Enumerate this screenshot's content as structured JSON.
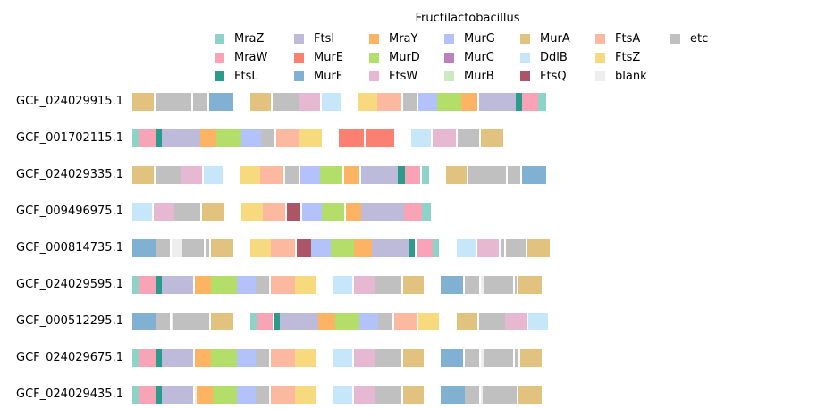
{
  "chart_data": {
    "type": "bar",
    "subtype": "gene-neighborhood-track",
    "legend_title": "Fructilactobacillus",
    "legend": [
      {
        "name": "MraZ",
        "color": "#8dd3c7"
      },
      {
        "name": "MraW",
        "color": "#f9a3b6"
      },
      {
        "name": "FtsL",
        "color": "#2b9c8c"
      },
      {
        "name": "FtsI",
        "color": "#bebada"
      },
      {
        "name": "MurE",
        "color": "#fb8072"
      },
      {
        "name": "MurF",
        "color": "#80b1d3"
      },
      {
        "name": "MraY",
        "color": "#fdb462"
      },
      {
        "name": "MurD",
        "color": "#b3de69"
      },
      {
        "name": "FtsW",
        "color": "#e6b8d2"
      },
      {
        "name": "MurG",
        "color": "#b4c2fc"
      },
      {
        "name": "MurC",
        "color": "#bc80bd"
      },
      {
        "name": "MurB",
        "color": "#ccebc5"
      },
      {
        "name": "MurA",
        "color": "#e1c27f"
      },
      {
        "name": "DdlB",
        "color": "#c6e6f9"
      },
      {
        "name": "FtsQ",
        "color": "#ab5566"
      },
      {
        "name": "FtsA",
        "color": "#fdb9a0"
      },
      {
        "name": "FtsZ",
        "color": "#f8da7e"
      },
      {
        "name": "blank",
        "color": "#eeeeee"
      },
      {
        "name": "etc",
        "color": "#c0c0c0"
      }
    ],
    "rows": [
      {
        "label": "GCF_024029915.1",
        "genes": [
          {
            "s": 148,
            "e": 172,
            "g": "MurA"
          },
          {
            "s": 174,
            "e": 214,
            "g": "etc"
          },
          {
            "s": 216,
            "e": 232,
            "g": "etc"
          },
          {
            "s": 234,
            "e": 261,
            "g": "MurF"
          },
          {
            "s": 280,
            "e": 303,
            "g": "MurA"
          },
          {
            "s": 305,
            "e": 334,
            "g": "etc"
          },
          {
            "s": 334,
            "e": 358,
            "g": "FtsW"
          },
          {
            "s": 360,
            "e": 381,
            "g": "DdlB"
          },
          {
            "s": 400,
            "e": 422,
            "g": "FtsZ"
          },
          {
            "s": 422,
            "e": 449,
            "g": "FtsA"
          },
          {
            "s": 451,
            "e": 466,
            "g": "etc"
          },
          {
            "s": 468,
            "e": 489,
            "g": "MurG"
          },
          {
            "s": 489,
            "e": 516,
            "g": "MurD"
          },
          {
            "s": 516,
            "e": 534,
            "g": "MraY"
          },
          {
            "s": 536,
            "e": 577,
            "g": "FtsI"
          },
          {
            "s": 577,
            "e": 584,
            "g": "FtsL"
          },
          {
            "s": 584,
            "e": 602,
            "g": "MraW"
          },
          {
            "s": 602,
            "e": 611,
            "g": "MraZ"
          }
        ]
      },
      {
        "label": "GCF_001702115.1",
        "genes": [
          {
            "s": 148,
            "e": 155,
            "g": "MraZ"
          },
          {
            "s": 155,
            "e": 174,
            "g": "MraW"
          },
          {
            "s": 174,
            "e": 181,
            "g": "FtsL"
          },
          {
            "s": 181,
            "e": 224,
            "g": "FtsI"
          },
          {
            "s": 224,
            "e": 242,
            "g": "MraY"
          },
          {
            "s": 242,
            "e": 270,
            "g": "MurD"
          },
          {
            "s": 270,
            "e": 292,
            "g": "MurG"
          },
          {
            "s": 292,
            "e": 307,
            "g": "etc"
          },
          {
            "s": 309,
            "e": 335,
            "g": "FtsA"
          },
          {
            "s": 335,
            "e": 360,
            "g": "FtsZ"
          },
          {
            "s": 379,
            "e": 407,
            "g": "MurE"
          },
          {
            "s": 409,
            "e": 441,
            "g": "MurE"
          },
          {
            "s": 460,
            "e": 482,
            "g": "DdlB"
          },
          {
            "s": 484,
            "e": 510,
            "g": "FtsW"
          },
          {
            "s": 512,
            "e": 536,
            "g": "etc"
          },
          {
            "s": 538,
            "e": 563,
            "g": "MurA"
          }
        ]
      },
      {
        "label": "GCF_024029335.1",
        "genes": [
          {
            "s": 148,
            "e": 172,
            "g": "MurA"
          },
          {
            "s": 174,
            "e": 202,
            "g": "etc"
          },
          {
            "s": 202,
            "e": 226,
            "g": "FtsW"
          },
          {
            "s": 228,
            "e": 249,
            "g": "DdlB"
          },
          {
            "s": 268,
            "e": 291,
            "g": "FtsZ"
          },
          {
            "s": 291,
            "e": 317,
            "g": "FtsA"
          },
          {
            "s": 319,
            "e": 334,
            "g": "etc"
          },
          {
            "s": 336,
            "e": 358,
            "g": "MurG"
          },
          {
            "s": 358,
            "e": 383,
            "g": "MurD"
          },
          {
            "s": 385,
            "e": 402,
            "g": "MraY"
          },
          {
            "s": 404,
            "e": 445,
            "g": "FtsI"
          },
          {
            "s": 445,
            "e": 453,
            "g": "FtsL"
          },
          {
            "s": 453,
            "e": 470,
            "g": "MraW"
          },
          {
            "s": 472,
            "e": 480,
            "g": "MraZ"
          },
          {
            "s": 499,
            "e": 522,
            "g": "MurA"
          },
          {
            "s": 524,
            "e": 566,
            "g": "etc"
          },
          {
            "s": 568,
            "e": 582,
            "g": "etc"
          },
          {
            "s": 584,
            "e": 611,
            "g": "MurF"
          }
        ]
      },
      {
        "label": "GCF_009496975.1",
        "genes": [
          {
            "s": 148,
            "e": 170,
            "g": "DdlB"
          },
          {
            "s": 172,
            "e": 195,
            "g": "FtsW"
          },
          {
            "s": 195,
            "e": 224,
            "g": "etc"
          },
          {
            "s": 226,
            "e": 251,
            "g": "MurA"
          },
          {
            "s": 270,
            "e": 294,
            "g": "FtsZ"
          },
          {
            "s": 294,
            "e": 319,
            "g": "FtsA"
          },
          {
            "s": 321,
            "e": 336,
            "g": "FtsQ"
          },
          {
            "s": 338,
            "e": 360,
            "g": "MurG"
          },
          {
            "s": 360,
            "e": 385,
            "g": "MurD"
          },
          {
            "s": 387,
            "e": 404,
            "g": "MraY"
          },
          {
            "s": 404,
            "e": 452,
            "g": "FtsI"
          },
          {
            "s": 452,
            "e": 472,
            "g": "MraW"
          },
          {
            "s": 472,
            "e": 482,
            "g": "MraZ"
          }
        ]
      },
      {
        "label": "GCF_000814735.1",
        "genes": [
          {
            "s": 148,
            "e": 174,
            "g": "MurF"
          },
          {
            "s": 174,
            "e": 190,
            "g": "etc"
          },
          {
            "s": 192,
            "e": 204,
            "g": "blank"
          },
          {
            "s": 204,
            "e": 228,
            "g": "etc"
          },
          {
            "s": 230,
            "e": 234,
            "g": "etc"
          },
          {
            "s": 236,
            "e": 261,
            "g": "MurA"
          },
          {
            "s": 280,
            "e": 303,
            "g": "FtsZ"
          },
          {
            "s": 303,
            "e": 330,
            "g": "FtsA"
          },
          {
            "s": 332,
            "e": 348,
            "g": "FtsQ"
          },
          {
            "s": 348,
            "e": 370,
            "g": "MurG"
          },
          {
            "s": 370,
            "e": 396,
            "g": "MurD"
          },
          {
            "s": 396,
            "e": 416,
            "g": "MraY"
          },
          {
            "s": 416,
            "e": 458,
            "g": "FtsI"
          },
          {
            "s": 458,
            "e": 464,
            "g": "FtsL"
          },
          {
            "s": 466,
            "e": 484,
            "g": "MraW"
          },
          {
            "s": 484,
            "e": 491,
            "g": "MraZ"
          },
          {
            "s": 511,
            "e": 532,
            "g": "DdlB"
          },
          {
            "s": 534,
            "e": 558,
            "g": "FtsW"
          },
          {
            "s": 560,
            "e": 564,
            "g": "etc"
          },
          {
            "s": 566,
            "e": 588,
            "g": "etc"
          },
          {
            "s": 590,
            "e": 615,
            "g": "MurA"
          }
        ]
      },
      {
        "label": "GCF_024029595.1",
        "genes": [
          {
            "s": 148,
            "e": 155,
            "g": "MraZ"
          },
          {
            "s": 155,
            "e": 174,
            "g": "MraW"
          },
          {
            "s": 174,
            "e": 181,
            "g": "FtsL"
          },
          {
            "s": 181,
            "e": 216,
            "g": "FtsI"
          },
          {
            "s": 218,
            "e": 236,
            "g": "MraY"
          },
          {
            "s": 236,
            "e": 265,
            "g": "MurD"
          },
          {
            "s": 265,
            "e": 286,
            "g": "MurG"
          },
          {
            "s": 286,
            "e": 301,
            "g": "etc"
          },
          {
            "s": 303,
            "e": 330,
            "g": "FtsA"
          },
          {
            "s": 330,
            "e": 354,
            "g": "FtsZ"
          },
          {
            "s": 373,
            "e": 394,
            "g": "DdlB"
          },
          {
            "s": 396,
            "e": 420,
            "g": "FtsW"
          },
          {
            "s": 420,
            "e": 449,
            "g": "etc"
          },
          {
            "s": 451,
            "e": 474,
            "g": "MurA"
          },
          {
            "s": 493,
            "e": 518,
            "g": "MurF"
          },
          {
            "s": 520,
            "e": 536,
            "g": "etc"
          },
          {
            "s": 538,
            "e": 542,
            "g": "blank"
          },
          {
            "s": 542,
            "e": 574,
            "g": "etc"
          },
          {
            "s": 576,
            "e": 578,
            "g": "etc"
          },
          {
            "s": 580,
            "e": 606,
            "g": "MurA"
          }
        ]
      },
      {
        "label": "GCF_000512295.1",
        "genes": [
          {
            "s": 148,
            "e": 174,
            "g": "MurF"
          },
          {
            "s": 174,
            "e": 190,
            "g": "etc"
          },
          {
            "s": 192,
            "e": 194,
            "g": "blank"
          },
          {
            "s": 194,
            "e": 234,
            "g": "etc"
          },
          {
            "s": 236,
            "e": 261,
            "g": "MurA"
          },
          {
            "s": 280,
            "e": 288,
            "g": "MraZ"
          },
          {
            "s": 288,
            "e": 305,
            "g": "MraW"
          },
          {
            "s": 307,
            "e": 313,
            "g": "FtsL"
          },
          {
            "s": 313,
            "e": 356,
            "g": "FtsI"
          },
          {
            "s": 356,
            "e": 375,
            "g": "MraY"
          },
          {
            "s": 375,
            "e": 402,
            "g": "MurD"
          },
          {
            "s": 402,
            "e": 423,
            "g": "MurG"
          },
          {
            "s": 423,
            "e": 439,
            "g": "etc"
          },
          {
            "s": 441,
            "e": 466,
            "g": "FtsA"
          },
          {
            "s": 468,
            "e": 491,
            "g": "FtsZ"
          },
          {
            "s": 511,
            "e": 534,
            "g": "MurA"
          },
          {
            "s": 536,
            "e": 565,
            "g": "etc"
          },
          {
            "s": 565,
            "e": 589,
            "g": "FtsW"
          },
          {
            "s": 591,
            "e": 613,
            "g": "DdlB"
          }
        ]
      },
      {
        "label": "GCF_024029675.1",
        "genes": [
          {
            "s": 148,
            "e": 155,
            "g": "MraZ"
          },
          {
            "s": 155,
            "e": 174,
            "g": "MraW"
          },
          {
            "s": 174,
            "e": 181,
            "g": "FtsL"
          },
          {
            "s": 181,
            "e": 216,
            "g": "FtsI"
          },
          {
            "s": 218,
            "e": 236,
            "g": "MraY"
          },
          {
            "s": 236,
            "e": 265,
            "g": "MurD"
          },
          {
            "s": 265,
            "e": 286,
            "g": "MurG"
          },
          {
            "s": 286,
            "e": 301,
            "g": "etc"
          },
          {
            "s": 303,
            "e": 330,
            "g": "FtsA"
          },
          {
            "s": 330,
            "e": 354,
            "g": "FtsZ"
          },
          {
            "s": 373,
            "e": 394,
            "g": "DdlB"
          },
          {
            "s": 396,
            "e": 420,
            "g": "FtsW"
          },
          {
            "s": 420,
            "e": 449,
            "g": "etc"
          },
          {
            "s": 451,
            "e": 474,
            "g": "MurA"
          },
          {
            "s": 493,
            "e": 518,
            "g": "MurF"
          },
          {
            "s": 520,
            "e": 536,
            "g": "etc"
          },
          {
            "s": 538,
            "e": 542,
            "g": "blank"
          },
          {
            "s": 542,
            "e": 574,
            "g": "etc"
          },
          {
            "s": 576,
            "e": 580,
            "g": "etc"
          },
          {
            "s": 582,
            "e": 606,
            "g": "MurA"
          }
        ]
      },
      {
        "label": "GCF_024029435.1",
        "genes": [
          {
            "s": 148,
            "e": 155,
            "g": "MraZ"
          },
          {
            "s": 155,
            "e": 174,
            "g": "MraW"
          },
          {
            "s": 174,
            "e": 181,
            "g": "FtsL"
          },
          {
            "s": 181,
            "e": 216,
            "g": "FtsI"
          },
          {
            "s": 218,
            "e": 220,
            "g": "blank"
          },
          {
            "s": 220,
            "e": 238,
            "g": "MraY"
          },
          {
            "s": 238,
            "e": 265,
            "g": "MurD"
          },
          {
            "s": 265,
            "e": 286,
            "g": "MurG"
          },
          {
            "s": 286,
            "e": 301,
            "g": "etc"
          },
          {
            "s": 303,
            "e": 330,
            "g": "FtsA"
          },
          {
            "s": 330,
            "e": 354,
            "g": "FtsZ"
          },
          {
            "s": 373,
            "e": 394,
            "g": "DdlB"
          },
          {
            "s": 396,
            "e": 420,
            "g": "FtsW"
          },
          {
            "s": 420,
            "e": 449,
            "g": "etc"
          },
          {
            "s": 451,
            "e": 474,
            "g": "MurA"
          },
          {
            "s": 493,
            "e": 520,
            "g": "MurF"
          },
          {
            "s": 520,
            "e": 536,
            "g": "etc"
          },
          {
            "s": 538,
            "e": 540,
            "g": "blank"
          },
          {
            "s": 540,
            "e": 578,
            "g": "etc"
          },
          {
            "s": 580,
            "e": 606,
            "g": "MurA"
          }
        ]
      }
    ]
  }
}
